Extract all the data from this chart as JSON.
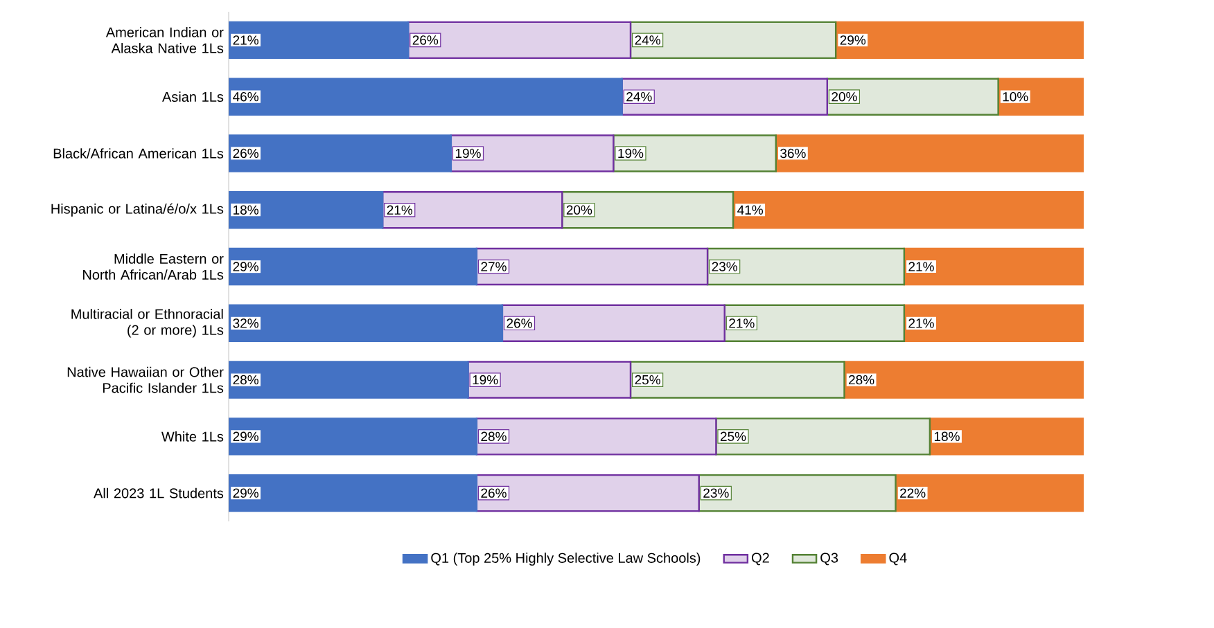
{
  "chart_data": {
    "type": "bar",
    "orientation": "horizontal",
    "stacked": true,
    "categories": [
      "American Indian or Alaska Native 1Ls",
      "Asian 1Ls",
      "Black/African American 1Ls",
      "Hispanic or Latina/é/o/x 1Ls",
      "Middle Eastern or North African/Arab 1Ls",
      "Multiracial or Ethnoracial (2 or more) 1Ls",
      "Native Hawaiian or Other Pacific Islander 1Ls",
      "White 1Ls",
      "All 2023 1L Students"
    ],
    "series": [
      {
        "name": "Q1 (Top 25% Highly Selective Law Schools)",
        "color": "#4472c4",
        "values": [
          21,
          46,
          26,
          18,
          29,
          32,
          28,
          29,
          29
        ],
        "value_labels": [
          "21%",
          "46%",
          "26%",
          "18%",
          "29%",
          "32%",
          "28%",
          "29%",
          "29%"
        ]
      },
      {
        "name": "Q2",
        "color": "#7030a0",
        "values": [
          26,
          24,
          19,
          21,
          27,
          26,
          19,
          28,
          26
        ],
        "value_labels": [
          "26%",
          "24%",
          "19%",
          "21%",
          "27%",
          "26%",
          "19%",
          "28%",
          "26%"
        ]
      },
      {
        "name": "Q3",
        "color": "#548235",
        "values": [
          24,
          20,
          19,
          20,
          23,
          21,
          25,
          25,
          23
        ],
        "value_labels": [
          "24%",
          "20%",
          "19%",
          "20%",
          "23%",
          "21%",
          "25%",
          "25%",
          "23%"
        ]
      },
      {
        "name": "Q4",
        "color": "#ed7d31",
        "values": [
          29,
          10,
          36,
          41,
          21,
          21,
          28,
          18,
          22
        ],
        "value_labels": [
          "29%",
          "10%",
          "36%",
          "41%",
          "21%",
          "21%",
          "28%",
          "18%",
          "22%"
        ]
      }
    ],
    "legend": "bottom"
  }
}
